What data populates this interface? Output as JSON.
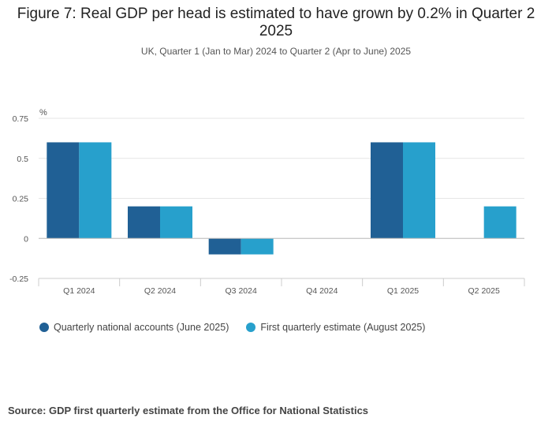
{
  "chart_data": {
    "type": "bar",
    "title": "Figure 7: Real GDP per head is estimated to have grown by 0.2% in Quarter 2 2025",
    "subtitle": "UK, Quarter 1 (Jan to Mar) 2024 to Quarter 2 (Apr to June) 2025",
    "ylabel": "%",
    "xlabel": "",
    "ylim": [
      -0.25,
      0.75
    ],
    "yticks": [
      -0.25,
      0,
      0.25,
      0.5,
      0.75
    ],
    "ytick_labels": [
      "-0.25",
      "0",
      "0.25",
      "0.5",
      "0.75"
    ],
    "categories": [
      "Q1 2024",
      "Q2 2024",
      "Q3 2024",
      "Q4 2024",
      "Q1 2025",
      "Q2 2025"
    ],
    "series": [
      {
        "name": "Quarterly national accounts (June 2025)",
        "color": "#206095",
        "values": [
          0.6,
          0.2,
          -0.1,
          0,
          0.6,
          null
        ]
      },
      {
        "name": "First quarterly estimate (August 2025)",
        "color": "#27a0cc",
        "values": [
          0.6,
          0.2,
          -0.1,
          0,
          0.6,
          0.2
        ]
      }
    ],
    "grid": true,
    "legend_position": "bottom-left"
  },
  "source": "Source: GDP first quarterly estimate from the Office for National Statistics"
}
